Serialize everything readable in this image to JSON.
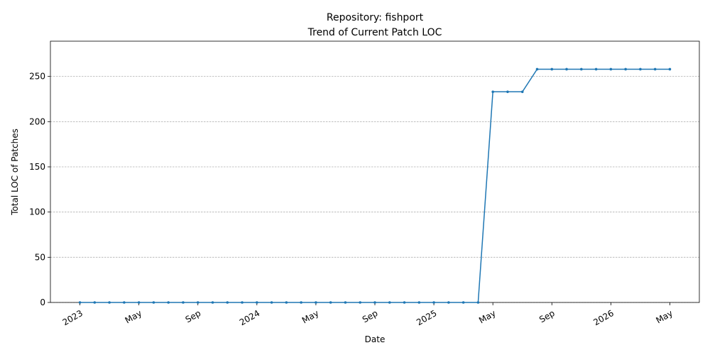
{
  "chart_data": {
    "type": "line",
    "title": [
      "Repository: fishport",
      "Trend of Current Patch LOC"
    ],
    "xlabel": "Date",
    "ylabel": "Total LOC of Patches",
    "x": [
      "2023-01",
      "2023-02",
      "2023-03",
      "2023-04",
      "2023-05",
      "2023-06",
      "2023-07",
      "2023-08",
      "2023-09",
      "2023-10",
      "2023-11",
      "2023-12",
      "2024-01",
      "2024-02",
      "2024-03",
      "2024-04",
      "2024-05",
      "2024-06",
      "2024-07",
      "2024-08",
      "2024-09",
      "2024-10",
      "2024-11",
      "2024-12",
      "2025-01",
      "2025-02",
      "2025-03",
      "2025-04",
      "2025-05",
      "2025-06",
      "2025-07",
      "2025-08",
      "2025-09",
      "2025-10",
      "2025-11",
      "2025-12",
      "2026-01",
      "2026-02",
      "2026-03",
      "2026-04",
      "2026-05"
    ],
    "values": [
      0,
      0,
      0,
      0,
      0,
      0,
      0,
      0,
      0,
      0,
      0,
      0,
      0,
      0,
      0,
      0,
      0,
      0,
      0,
      0,
      0,
      0,
      0,
      0,
      0,
      0,
      0,
      0,
      233,
      233,
      233,
      258,
      258,
      258,
      258,
      258,
      258,
      258,
      258,
      258,
      258
    ],
    "color": "#1f77b4",
    "xlim": [
      "2022-11",
      "2026-07"
    ],
    "xticks": [
      {
        "value": "2023-01",
        "label": "2023"
      },
      {
        "value": "2023-05",
        "label": "May"
      },
      {
        "value": "2023-09",
        "label": "Sep"
      },
      {
        "value": "2024-01",
        "label": "2024"
      },
      {
        "value": "2024-05",
        "label": "May"
      },
      {
        "value": "2024-09",
        "label": "Sep"
      },
      {
        "value": "2025-01",
        "label": "2025"
      },
      {
        "value": "2025-05",
        "label": "May"
      },
      {
        "value": "2025-09",
        "label": "Sep"
      },
      {
        "value": "2026-01",
        "label": "2026"
      },
      {
        "value": "2026-05",
        "label": "May"
      }
    ],
    "ylim": [
      0,
      289
    ],
    "yticks": [
      0,
      50,
      100,
      150,
      200,
      250
    ],
    "grid": "y"
  }
}
